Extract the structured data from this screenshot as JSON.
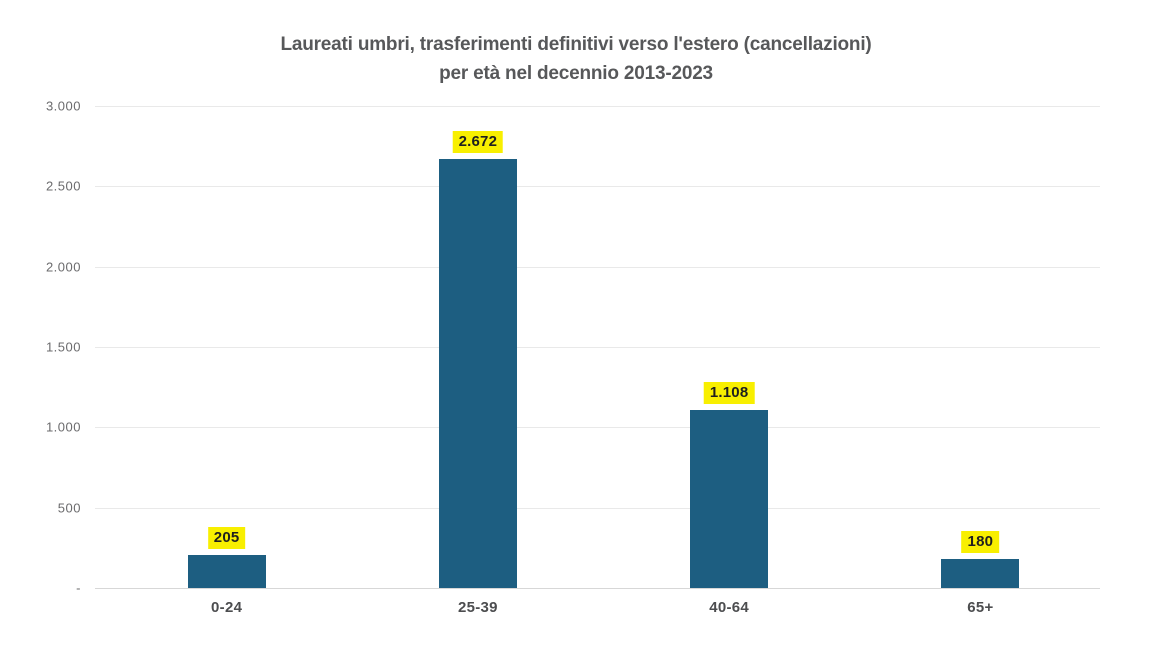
{
  "chart_data": {
    "type": "bar",
    "title_line1": "Laureati umbri, trasferimenti definitivi verso l'estero (cancellazioni)",
    "title_line2": "per età nel decennio 2013-2023",
    "categories": [
      "0-24",
      "25-39",
      "40-64",
      "65+"
    ],
    "values": [
      205,
      2672,
      1108,
      180
    ],
    "value_labels": [
      "205",
      "2.672",
      "1.108",
      "180"
    ],
    "xlabel": "",
    "ylabel": "",
    "ylim": [
      0,
      3000
    ],
    "yticks": [
      {
        "value": 3000,
        "label": "3.000"
      },
      {
        "value": 2500,
        "label": "2.500"
      },
      {
        "value": 2000,
        "label": "2.000"
      },
      {
        "value": 1500,
        "label": "1.500"
      },
      {
        "value": 1000,
        "label": "1.000"
      },
      {
        "value": 500,
        "label": "500"
      },
      {
        "value": 0,
        "label": "-"
      }
    ],
    "grid": "horizontal",
    "legend": "none",
    "colors": {
      "bar": "#1d5e81",
      "value_label_background": "#f8ef00",
      "value_label_text": "#1f1f1f",
      "title_text": "#57585a",
      "ytick_text": "#6b6b6d",
      "xlabel_text": "#4c4d4f",
      "gridline": "#e9e9e9",
      "axis_line": "#d7d7d7",
      "background": "#ffffff"
    }
  }
}
